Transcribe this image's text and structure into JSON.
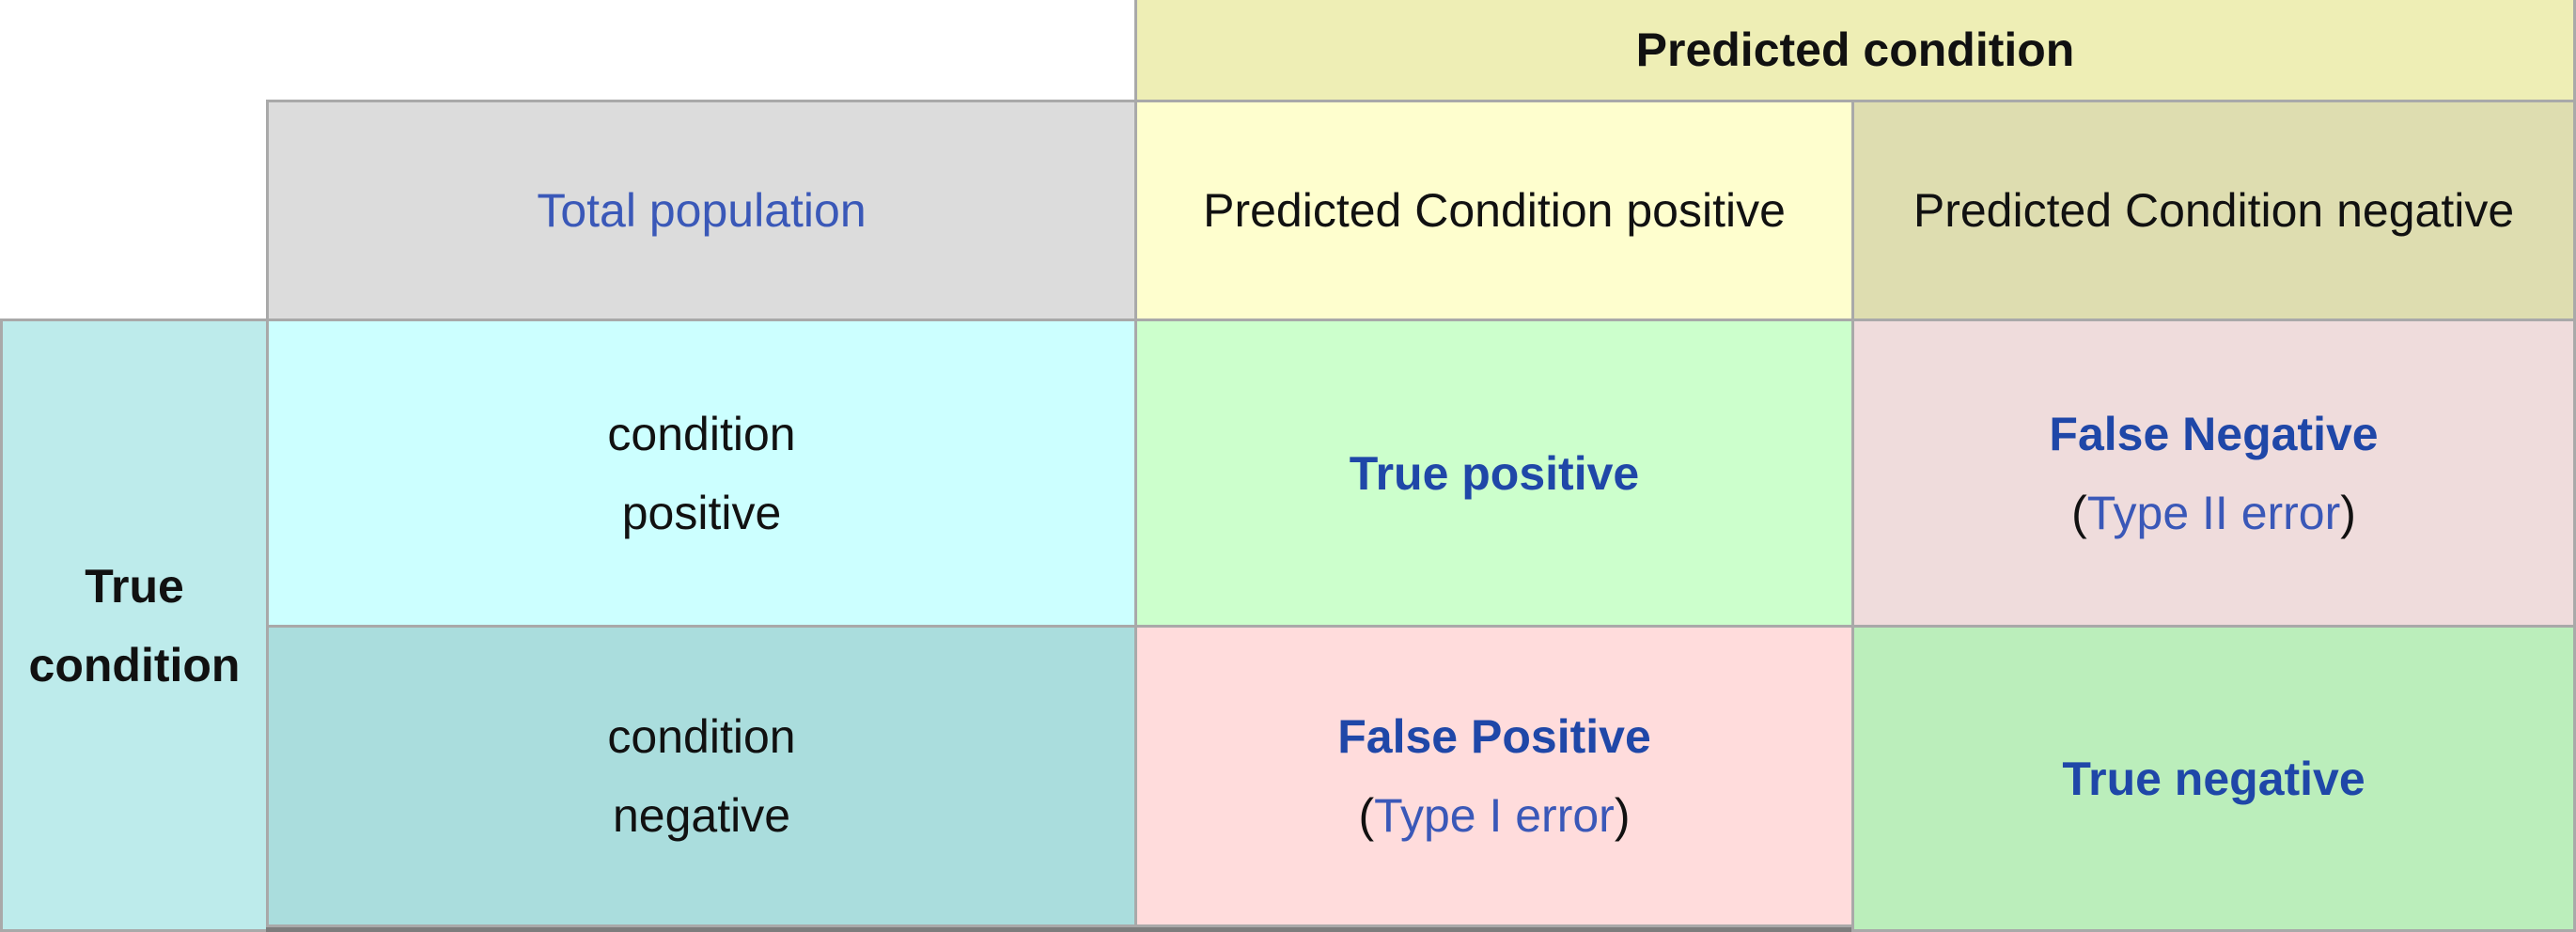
{
  "header": {
    "predicted_condition": "Predicted condition"
  },
  "columns": {
    "total_population": "Total population",
    "predicted_positive": "Predicted Condition positive",
    "predicted_negative": "Predicted Condition negative"
  },
  "rows": {
    "true_condition_line1": "True",
    "true_condition_line2": "condition",
    "condition_positive_line1": "condition",
    "condition_positive_line2": "positive",
    "condition_negative_line1": "condition",
    "condition_negative_line2": "negative"
  },
  "cells": {
    "true_positive": "True positive",
    "false_negative": "False Negative",
    "false_negative_paren_open": "(",
    "false_negative_type": "Type II error",
    "false_negative_paren_close": ")",
    "false_positive": "False Positive",
    "false_positive_paren_open": "(",
    "false_positive_type": "Type I error",
    "false_positive_paren_close": ")",
    "true_negative": "True negative"
  },
  "colors": {
    "predicted_header": "#eeeeb5",
    "total_population": "#dcdcdc",
    "predicted_positive": "#fefece",
    "predicted_negative": "#deddb0",
    "true_condition": "#bdebeb",
    "condition_positive": "#ccffff",
    "condition_negative": "#aadddd",
    "true_positive": "#ccffcc",
    "false_negative": "#efdcdc",
    "false_positive": "#ffdcdc",
    "true_negative": "#bbeebb",
    "link": "#3a58b8"
  }
}
